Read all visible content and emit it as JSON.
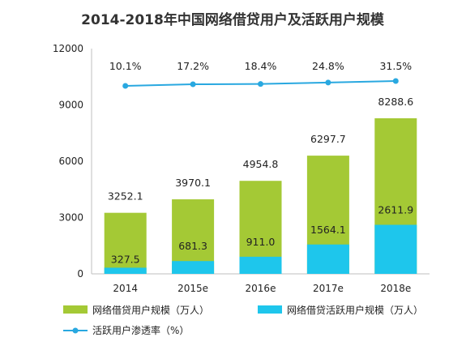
{
  "chart_data": {
    "type": "bar",
    "title": "2014-2018年中国网络借贷用户及活跃用户规模",
    "categories": [
      "2014",
      "2015e",
      "2016e",
      "2017e",
      "2018e"
    ],
    "series": [
      {
        "name": "网络借贷用户规模（万人）",
        "kind": "bar",
        "color": "#a4c935",
        "values": [
          3252.1,
          3970.1,
          4954.8,
          6297.7,
          8288.6
        ]
      },
      {
        "name": "网络借贷活跃用户规模（万人）",
        "kind": "bar",
        "color": "#1ec6ec",
        "values": [
          327.5,
          681.3,
          911.0,
          1564.1,
          2611.9
        ]
      },
      {
        "name": "活跃用户渗透率（%）",
        "kind": "line",
        "color": "#29a8e0",
        "values": [
          10.1,
          17.2,
          18.4,
          24.8,
          31.5
        ]
      }
    ],
    "value_labels": {
      "total": [
        "3252.1",
        "3970.1",
        "4954.8",
        "6297.7",
        "8288.6"
      ],
      "active": [
        "327.5",
        "681.3",
        "911.0",
        "1564.1",
        "2611.9"
      ],
      "rate": [
        "10.1%",
        "17.2%",
        "18.4%",
        "24.8%",
        "31.5%"
      ]
    },
    "y_ticks": [
      "0",
      "3000",
      "6000",
      "9000",
      "12000"
    ],
    "ylim": [
      0,
      12000
    ],
    "grid": false,
    "legend_position": "bottom"
  }
}
